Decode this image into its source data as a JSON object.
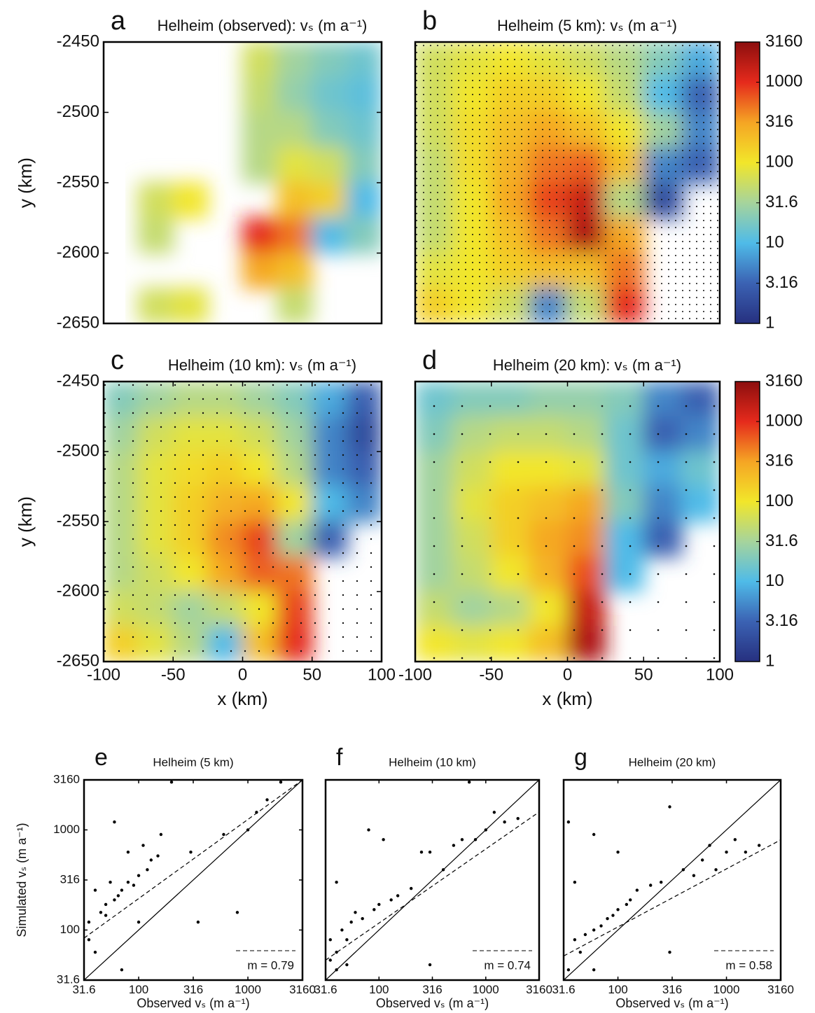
{
  "chart_data": [
    {
      "type": "heatmap",
      "label": "a",
      "title": "Helheim (observed): vₛ (m a⁻¹)",
      "ylabel": "y (km)",
      "xlim": [
        -100,
        100
      ],
      "ylim": [
        -2450,
        -2650
      ],
      "yticks": [
        -2450,
        -2500,
        -2550,
        -2600,
        -2650
      ],
      "clim": [
        1,
        3160
      ],
      "log_color": true,
      "colormap": [
        "#26307f",
        "#3b62b3",
        "#4fbbe8",
        "#a6d49c",
        "#f2e62a",
        "#f5a524",
        "#e52a1c",
        "#8c0e0e"
      ],
      "values": [
        [
          null,
          null,
          null,
          null,
          60,
          30,
          20,
          15
        ],
        [
          null,
          null,
          null,
          null,
          50,
          25,
          15,
          12
        ],
        [
          null,
          null,
          null,
          null,
          40,
          40,
          20,
          15
        ],
        [
          null,
          null,
          null,
          null,
          40,
          80,
          60,
          20
        ],
        [
          null,
          60,
          100,
          null,
          null,
          200,
          150,
          10
        ],
        [
          null,
          50,
          null,
          null,
          1000,
          500,
          10,
          20
        ],
        [
          null,
          null,
          null,
          null,
          300,
          200,
          null,
          null
        ],
        [
          null,
          60,
          80,
          null,
          null,
          50,
          null,
          null
        ]
      ]
    },
    {
      "type": "heatmap",
      "label": "b",
      "title": "Helheim (5 km): vₛ (m a⁻¹)",
      "xlim": [
        -100,
        100
      ],
      "ylim": [
        -2450,
        -2650
      ],
      "clim": [
        1,
        3160
      ],
      "log_color": true,
      "colormap": [
        "#26307f",
        "#3b62b3",
        "#4fbbe8",
        "#a6d49c",
        "#f2e62a",
        "#f5a524",
        "#e52a1c",
        "#8c0e0e"
      ],
      "colorbar_ticks": [
        1,
        3.16,
        10,
        31.6,
        100,
        316,
        1000,
        3160
      ],
      "values": [
        [
          60,
          80,
          100,
          80,
          60,
          40,
          20,
          8
        ],
        [
          60,
          100,
          150,
          150,
          100,
          50,
          10,
          3
        ],
        [
          60,
          120,
          200,
          300,
          200,
          100,
          30,
          5
        ],
        [
          50,
          120,
          250,
          500,
          600,
          200,
          5,
          3
        ],
        [
          50,
          100,
          300,
          800,
          1500,
          40,
          2,
          null
        ],
        [
          50,
          100,
          200,
          500,
          2000,
          300,
          null,
          null
        ],
        [
          80,
          100,
          150,
          200,
          200,
          500,
          null,
          null
        ],
        [
          150,
          100,
          60,
          5,
          50,
          1000,
          null,
          null
        ]
      ]
    },
    {
      "type": "heatmap",
      "label": "c",
      "title": "Helheim (10 km): vₛ (m a⁻¹)",
      "xlabel": "x (km)",
      "ylabel": "y (km)",
      "xlim": [
        -100,
        100
      ],
      "ylim": [
        -2450,
        -2650
      ],
      "xticks": [
        -100,
        -50,
        0,
        50,
        100
      ],
      "yticks": [
        -2450,
        -2500,
        -2550,
        -2600,
        -2650
      ],
      "clim": [
        1,
        3160
      ],
      "log_color": true,
      "colormap": [
        "#26307f",
        "#3b62b3",
        "#4fbbe8",
        "#a6d49c",
        "#f2e62a",
        "#f5a524",
        "#e52a1c",
        "#8c0e0e"
      ],
      "values": [
        [
          20,
          30,
          40,
          40,
          30,
          20,
          8,
          3
        ],
        [
          30,
          60,
          80,
          80,
          60,
          30,
          5,
          2
        ],
        [
          40,
          80,
          120,
          150,
          100,
          40,
          5,
          3
        ],
        [
          40,
          80,
          150,
          250,
          300,
          100,
          10,
          5
        ],
        [
          40,
          80,
          150,
          400,
          800,
          30,
          3,
          null
        ],
        [
          40,
          60,
          100,
          300,
          600,
          500,
          null,
          null
        ],
        [
          60,
          50,
          30,
          50,
          100,
          800,
          null,
          null
        ],
        [
          150,
          80,
          40,
          10,
          200,
          1000,
          null,
          null
        ]
      ]
    },
    {
      "type": "heatmap",
      "label": "d",
      "title": "Helheim (20 km): vₛ (m a⁻¹)",
      "xlabel": "x (km)",
      "xlim": [
        -100,
        100
      ],
      "ylim": [
        -2450,
        -2650
      ],
      "xticks": [
        -100,
        -50,
        0,
        50,
        100
      ],
      "clim": [
        1,
        3160
      ],
      "log_color": true,
      "colormap": [
        "#26307f",
        "#3b62b3",
        "#4fbbe8",
        "#a6d49c",
        "#f2e62a",
        "#f5a524",
        "#e52a1c",
        "#8c0e0e"
      ],
      "colorbar_ticks": [
        1,
        3.16,
        10,
        31.6,
        100,
        316,
        1000,
        3160
      ],
      "values": [
        [
          15,
          20,
          20,
          25,
          25,
          20,
          5,
          3
        ],
        [
          20,
          40,
          50,
          50,
          40,
          15,
          3,
          5
        ],
        [
          30,
          60,
          100,
          100,
          80,
          15,
          8,
          15
        ],
        [
          30,
          80,
          150,
          200,
          300,
          20,
          5,
          10
        ],
        [
          30,
          60,
          150,
          300,
          400,
          10,
          3,
          null
        ],
        [
          30,
          50,
          100,
          250,
          700,
          10,
          null,
          null
        ],
        [
          50,
          30,
          40,
          100,
          1500,
          null,
          null,
          null
        ],
        [
          100,
          80,
          100,
          200,
          2000,
          null,
          null,
          null
        ]
      ]
    },
    {
      "type": "scatter",
      "label": "e",
      "title": "Helheim (5 km)",
      "xlabel": "Observed vₛ (m a⁻¹)",
      "ylabel": "Simulated vₛ (m a⁻¹)",
      "log_scale": true,
      "xlim": [
        31.6,
        3160
      ],
      "ylim": [
        31.6,
        3160
      ],
      "xticks": [
        31.6,
        100,
        316,
        1000,
        3160
      ],
      "yticks": [
        31.6,
        100,
        316,
        1000,
        3160
      ],
      "fit": {
        "value": 0.79,
        "label": "m = 0.79",
        "y_at_xmin": 83
      },
      "x": [
        35,
        35,
        40,
        40,
        45,
        50,
        50,
        55,
        60,
        60,
        65,
        70,
        70,
        80,
        80,
        90,
        100,
        100,
        110,
        120,
        130,
        150,
        160,
        200,
        300,
        350,
        600,
        800,
        1000,
        1500,
        2000,
        1200
      ],
      "y": [
        80,
        120,
        250,
        60,
        150,
        140,
        180,
        300,
        200,
        1200,
        220,
        250,
        40,
        300,
        600,
        280,
        120,
        350,
        700,
        400,
        500,
        550,
        900,
        3000,
        600,
        120,
        900,
        150,
        1000,
        2000,
        3000,
        1500
      ]
    },
    {
      "type": "scatter",
      "label": "f",
      "title": "Helheim (10 km)",
      "xlabel": "Observed vₛ (m a⁻¹)",
      "log_scale": true,
      "xlim": [
        31.6,
        3160
      ],
      "ylim": [
        31.6,
        3160
      ],
      "xticks": [
        31.6,
        100,
        316,
        1000,
        3160
      ],
      "fit": {
        "value": 0.74,
        "label": "m = 0.74",
        "y_at_xmin": 50
      },
      "x": [
        35,
        35,
        40,
        40,
        45,
        50,
        55,
        60,
        70,
        80,
        90,
        100,
        110,
        130,
        150,
        200,
        250,
        300,
        400,
        500,
        600,
        800,
        1000,
        1200,
        1500,
        2000,
        700,
        300,
        40,
        50
      ],
      "y": [
        50,
        80,
        300,
        60,
        100,
        80,
        120,
        150,
        130,
        1000,
        160,
        180,
        800,
        200,
        220,
        260,
        600,
        600,
        400,
        700,
        800,
        800,
        1000,
        1500,
        1200,
        1300,
        3000,
        45,
        40,
        45
      ]
    },
    {
      "type": "scatter",
      "label": "g",
      "title": "Helheim (20 km)",
      "xlabel": "Observed vₛ (m a⁻¹)",
      "log_scale": true,
      "xlim": [
        31.6,
        3160
      ],
      "ylim": [
        31.6,
        3160
      ],
      "xticks": [
        31.6,
        100,
        316,
        1000,
        3160
      ],
      "fit": {
        "value": 0.58,
        "label": "m = 0.58",
        "y_at_xmin": 55
      },
      "x": [
        35,
        35,
        40,
        40,
        45,
        50,
        60,
        60,
        70,
        80,
        90,
        100,
        120,
        130,
        150,
        200,
        250,
        300,
        300,
        400,
        500,
        600,
        700,
        800,
        1000,
        1200,
        1500,
        2000,
        60,
        100
      ],
      "y": [
        40,
        1200,
        80,
        300,
        60,
        90,
        100,
        900,
        110,
        130,
        140,
        160,
        180,
        200,
        250,
        280,
        300,
        60,
        1700,
        400,
        350,
        500,
        700,
        400,
        600,
        800,
        600,
        700,
        40,
        600
      ]
    }
  ]
}
